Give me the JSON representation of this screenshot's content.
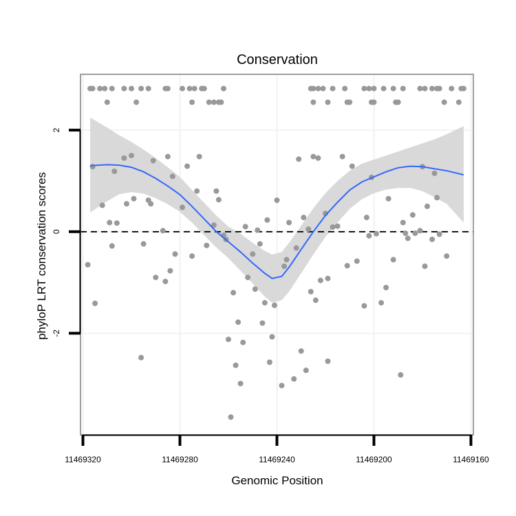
{
  "chart_data": {
    "type": "scatter",
    "title": "Conservation",
    "xlabel": "Genomic Position",
    "ylabel": "phyloP LRT conservation scores",
    "x_reversed": true,
    "xlim": [
      11469321,
      11469159
    ],
    "ylim": [
      -4.0,
      3.1
    ],
    "x_ticks": [
      11469320,
      11469280,
      11469240,
      11469200,
      11469160
    ],
    "x_tick_labels": [
      "11469320",
      "11469280",
      "11469240",
      "11469200",
      "11469160"
    ],
    "y_ticks": [
      2,
      0,
      -2
    ],
    "y_tick_labels": [
      "2",
      "0",
      "-2"
    ],
    "reference_line": {
      "y": 0,
      "style": "dashed"
    },
    "grid": true,
    "colors": {
      "points": "#999999",
      "smooth_line": "#3366ff",
      "confidence_band": "#d9d9d9",
      "panel_border": "#7f7f7f",
      "grid": "#f2f2f2"
    },
    "points": [
      {
        "x": 11469317,
        "y": 2.82
      },
      {
        "x": 11469316,
        "y": 2.82
      },
      {
        "x": 11469313,
        "y": 2.82
      },
      {
        "x": 11469311,
        "y": 2.82
      },
      {
        "x": 11469308,
        "y": 2.82
      },
      {
        "x": 11469303,
        "y": 2.82
      },
      {
        "x": 11469300,
        "y": 2.82
      },
      {
        "x": 11469296,
        "y": 2.82
      },
      {
        "x": 11469293,
        "y": 2.82
      },
      {
        "x": 11469286,
        "y": 2.82
      },
      {
        "x": 11469285,
        "y": 2.82
      },
      {
        "x": 11469279,
        "y": 2.82
      },
      {
        "x": 11469276,
        "y": 2.82
      },
      {
        "x": 11469274,
        "y": 2.82
      },
      {
        "x": 11469271,
        "y": 2.82
      },
      {
        "x": 11469270,
        "y": 2.82
      },
      {
        "x": 11469262,
        "y": 2.82
      },
      {
        "x": 11469310,
        "y": 2.55
      },
      {
        "x": 11469298,
        "y": 2.55
      },
      {
        "x": 11469275,
        "y": 2.55
      },
      {
        "x": 11469268,
        "y": 2.55
      },
      {
        "x": 11469266,
        "y": 2.55
      },
      {
        "x": 11469264,
        "y": 2.55
      },
      {
        "x": 11469263,
        "y": 2.55
      },
      {
        "x": 11469226,
        "y": 2.82
      },
      {
        "x": 11469225,
        "y": 2.82
      },
      {
        "x": 11469223,
        "y": 2.82
      },
      {
        "x": 11469221,
        "y": 2.82
      },
      {
        "x": 11469217,
        "y": 2.82
      },
      {
        "x": 11469212,
        "y": 2.82
      },
      {
        "x": 11469204,
        "y": 2.82
      },
      {
        "x": 11469202,
        "y": 2.82
      },
      {
        "x": 11469200,
        "y": 2.82
      },
      {
        "x": 11469196,
        "y": 2.82
      },
      {
        "x": 11469192,
        "y": 2.82
      },
      {
        "x": 11469188,
        "y": 2.82
      },
      {
        "x": 11469181,
        "y": 2.82
      },
      {
        "x": 11469179,
        "y": 2.82
      },
      {
        "x": 11469176,
        "y": 2.82
      },
      {
        "x": 11469174,
        "y": 2.82
      },
      {
        "x": 11469173,
        "y": 2.82
      },
      {
        "x": 11469168,
        "y": 2.82
      },
      {
        "x": 11469164,
        "y": 2.82
      },
      {
        "x": 11469163,
        "y": 2.82
      },
      {
        "x": 11469225,
        "y": 2.55
      },
      {
        "x": 11469219,
        "y": 2.55
      },
      {
        "x": 11469211,
        "y": 2.55
      },
      {
        "x": 11469210,
        "y": 2.55
      },
      {
        "x": 11469201,
        "y": 2.55
      },
      {
        "x": 11469200,
        "y": 2.55
      },
      {
        "x": 11469191,
        "y": 2.55
      },
      {
        "x": 11469190,
        "y": 2.55
      },
      {
        "x": 11469171,
        "y": 2.55
      },
      {
        "x": 11469165,
        "y": 2.55
      },
      {
        "x": 11469318,
        "y": -0.65
      },
      {
        "x": 11469316,
        "y": 1.28
      },
      {
        "x": 11469315,
        "y": -1.41
      },
      {
        "x": 11469312,
        "y": 0.52
      },
      {
        "x": 11469309,
        "y": 0.18
      },
      {
        "x": 11469308,
        "y": -0.28
      },
      {
        "x": 11469307,
        "y": 1.19
      },
      {
        "x": 11469306,
        "y": 0.17
      },
      {
        "x": 11469303,
        "y": 1.45
      },
      {
        "x": 11469302,
        "y": 0.55
      },
      {
        "x": 11469300,
        "y": 1.5
      },
      {
        "x": 11469299,
        "y": 0.65
      },
      {
        "x": 11469296,
        "y": -2.48
      },
      {
        "x": 11469295,
        "y": -0.24
      },
      {
        "x": 11469293,
        "y": 0.62
      },
      {
        "x": 11469292,
        "y": 0.55
      },
      {
        "x": 11469291,
        "y": 1.4
      },
      {
        "x": 11469290,
        "y": -0.9
      },
      {
        "x": 11469287,
        "y": 0.02
      },
      {
        "x": 11469286,
        "y": -0.98
      },
      {
        "x": 11469285,
        "y": 1.48
      },
      {
        "x": 11469284,
        "y": -0.77
      },
      {
        "x": 11469283,
        "y": 1.09
      },
      {
        "x": 11469282,
        "y": -0.44
      },
      {
        "x": 11469279,
        "y": 0.48
      },
      {
        "x": 11469277,
        "y": 1.29
      },
      {
        "x": 11469275,
        "y": -0.48
      },
      {
        "x": 11469273,
        "y": 0.8
      },
      {
        "x": 11469272,
        "y": 1.48
      },
      {
        "x": 11469269,
        "y": -0.27
      },
      {
        "x": 11469266,
        "y": 0.13
      },
      {
        "x": 11469265,
        "y": 0.8
      },
      {
        "x": 11469264,
        "y": 0.63
      },
      {
        "x": 11469262,
        "y": -0.07
      },
      {
        "x": 11469261,
        "y": -0.15
      },
      {
        "x": 11469260,
        "y": -2.12
      },
      {
        "x": 11469259,
        "y": -3.65
      },
      {
        "x": 11469258,
        "y": -1.2
      },
      {
        "x": 11469257,
        "y": -2.63
      },
      {
        "x": 11469256,
        "y": -1.78
      },
      {
        "x": 11469255,
        "y": -2.99
      },
      {
        "x": 11469254,
        "y": -2.18
      },
      {
        "x": 11469253,
        "y": 0.1
      },
      {
        "x": 11469252,
        "y": -0.9
      },
      {
        "x": 11469250,
        "y": -0.44
      },
      {
        "x": 11469249,
        "y": -1.13
      },
      {
        "x": 11469248,
        "y": 0.03
      },
      {
        "x": 11469247,
        "y": -0.24
      },
      {
        "x": 11469246,
        "y": -1.8
      },
      {
        "x": 11469245,
        "y": -1.4
      },
      {
        "x": 11469244,
        "y": 0.23
      },
      {
        "x": 11469243,
        "y": -2.57
      },
      {
        "x": 11469242,
        "y": -2.07
      },
      {
        "x": 11469241,
        "y": -1.45
      },
      {
        "x": 11469240,
        "y": 0.62
      },
      {
        "x": 11469238,
        "y": -3.03
      },
      {
        "x": 11469237,
        "y": -0.68
      },
      {
        "x": 11469236,
        "y": -0.55
      },
      {
        "x": 11469235,
        "y": 0.18
      },
      {
        "x": 11469233,
        "y": -2.9
      },
      {
        "x": 11469232,
        "y": -0.32
      },
      {
        "x": 11469231,
        "y": 1.43
      },
      {
        "x": 11469230,
        "y": -2.35
      },
      {
        "x": 11469229,
        "y": 0.28
      },
      {
        "x": 11469228,
        "y": -2.73
      },
      {
        "x": 11469227,
        "y": 0.05
      },
      {
        "x": 11469226,
        "y": -1.18
      },
      {
        "x": 11469225,
        "y": 1.48
      },
      {
        "x": 11469224,
        "y": -1.35
      },
      {
        "x": 11469223,
        "y": 1.45
      },
      {
        "x": 11469222,
        "y": -0.96
      },
      {
        "x": 11469220,
        "y": 0.36
      },
      {
        "x": 11469219,
        "y": -0.92
      },
      {
        "x": 11469219,
        "y": -2.55
      },
      {
        "x": 11469217,
        "y": 0.09
      },
      {
        "x": 11469215,
        "y": 0.11
      },
      {
        "x": 11469213,
        "y": 1.48
      },
      {
        "x": 11469211,
        "y": -0.67
      },
      {
        "x": 11469209,
        "y": 1.29
      },
      {
        "x": 11469207,
        "y": -0.58
      },
      {
        "x": 11469204,
        "y": -1.46
      },
      {
        "x": 11469203,
        "y": 0.28
      },
      {
        "x": 11469202,
        "y": -0.08
      },
      {
        "x": 11469201,
        "y": 1.07
      },
      {
        "x": 11469199,
        "y": -0.04
      },
      {
        "x": 11469197,
        "y": -1.4
      },
      {
        "x": 11469195,
        "y": -1.1
      },
      {
        "x": 11469194,
        "y": 0.65
      },
      {
        "x": 11469192,
        "y": -0.55
      },
      {
        "x": 11469189,
        "y": -2.82
      },
      {
        "x": 11469188,
        "y": 0.18
      },
      {
        "x": 11469187,
        "y": -0.03
      },
      {
        "x": 11469186,
        "y": -0.13
      },
      {
        "x": 11469184,
        "y": 0.33
      },
      {
        "x": 11469183,
        "y": -0.03
      },
      {
        "x": 11469181,
        "y": 0.02
      },
      {
        "x": 11469180,
        "y": 1.28
      },
      {
        "x": 11469179,
        "y": -0.68
      },
      {
        "x": 11469178,
        "y": 0.5
      },
      {
        "x": 11469176,
        "y": -0.15
      },
      {
        "x": 11469175,
        "y": 1.15
      },
      {
        "x": 11469174,
        "y": 0.67
      },
      {
        "x": 11469173,
        "y": -0.05
      },
      {
        "x": 11469170,
        "y": -0.48
      }
    ],
    "smooth": {
      "x": [
        11469317,
        11469310,
        11469305,
        11469300,
        11469295,
        11469290,
        11469285,
        11469280,
        11469275,
        11469270,
        11469265,
        11469260,
        11469255,
        11469250,
        11469245,
        11469242,
        11469238,
        11469235,
        11469230,
        11469225,
        11469220,
        11469215,
        11469210,
        11469205,
        11469200,
        11469195,
        11469190,
        11469185,
        11469180,
        11469175,
        11469170,
        11469163
      ],
      "y": [
        1.3,
        1.32,
        1.31,
        1.27,
        1.18,
        1.05,
        0.9,
        0.73,
        0.5,
        0.25,
        0.0,
        -0.2,
        -0.4,
        -0.62,
        -0.82,
        -0.92,
        -0.88,
        -0.7,
        -0.35,
        0.0,
        0.32,
        0.58,
        0.82,
        0.98,
        1.08,
        1.18,
        1.26,
        1.29,
        1.28,
        1.24,
        1.2,
        1.12
      ],
      "lower": [
        0.38,
        0.6,
        0.74,
        0.78,
        0.75,
        0.66,
        0.54,
        0.39,
        0.18,
        -0.07,
        -0.31,
        -0.52,
        -0.77,
        -1.02,
        -1.28,
        -1.4,
        -1.35,
        -1.18,
        -0.82,
        -0.45,
        -0.1,
        0.18,
        0.45,
        0.64,
        0.76,
        0.83,
        0.86,
        0.86,
        0.8,
        0.68,
        0.55,
        0.18
      ],
      "upper": [
        2.25,
        2.05,
        1.9,
        1.77,
        1.62,
        1.45,
        1.27,
        1.08,
        0.82,
        0.57,
        0.32,
        0.1,
        -0.04,
        -0.22,
        -0.38,
        -0.45,
        -0.4,
        -0.22,
        0.12,
        0.46,
        0.76,
        1.0,
        1.2,
        1.34,
        1.42,
        1.5,
        1.58,
        1.66,
        1.74,
        1.82,
        1.92,
        2.08
      ]
    }
  }
}
